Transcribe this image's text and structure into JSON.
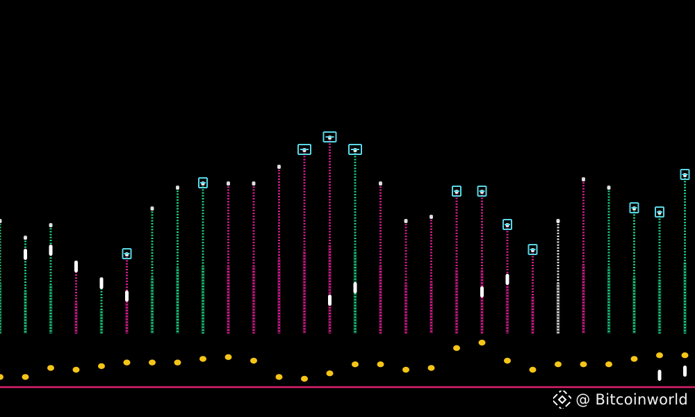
{
  "watermark": {
    "text": "@ Bitcoinworld",
    "logo": "binance-diamond-logo"
  },
  "colors": {
    "background": "#000000",
    "baseline": "#e0206e",
    "green": "#22e08a",
    "magenta": "#e8209a",
    "white": "#ffffff",
    "cyan": "#59d8e6",
    "dot": "#f5c518"
  },
  "columns": [
    {
      "top": 0.47,
      "bottom": 0.2,
      "color": "green",
      "marker": 0.05,
      "bracket": false,
      "dot": 0.01
    },
    {
      "top": 0.43,
      "bottom": 0.2,
      "color": "green",
      "marker": 0.39,
      "bracket": false,
      "dot": 0.01
    },
    {
      "top": 0.46,
      "bottom": 0.2,
      "color": "green",
      "marker": 0.4,
      "bracket": false,
      "dot": 0.06
    },
    {
      "top": 0.37,
      "bottom": 0.2,
      "color": "magenta",
      "marker": 0.36,
      "bracket": false,
      "dot": 0.05
    },
    {
      "top": 0.33,
      "bottom": 0.2,
      "color": "green",
      "marker": 0.32,
      "bracket": false,
      "dot": 0.07
    },
    {
      "top": 0.39,
      "bottom": 0.2,
      "color": "magenta",
      "marker": 0.29,
      "bracket": true,
      "dot": 0.09
    },
    {
      "top": 0.5,
      "bottom": 0.2,
      "color": "green",
      "marker": 0.05,
      "bracket": false,
      "dot": 0.09
    },
    {
      "top": 0.55,
      "bottom": 0.2,
      "color": "green",
      "marker": 0.05,
      "bracket": false,
      "dot": 0.09
    },
    {
      "top": 0.56,
      "bottom": 0.2,
      "color": "green",
      "marker": 0.05,
      "bracket": true,
      "dot": 0.11
    },
    {
      "top": 0.56,
      "bottom": 0.2,
      "color": "magenta",
      "marker": 0.05,
      "bracket": false,
      "dot": 0.12
    },
    {
      "top": 0.56,
      "bottom": 0.2,
      "color": "magenta",
      "marker": 0.05,
      "bracket": false,
      "dot": 0.1
    },
    {
      "top": 0.6,
      "bottom": 0.2,
      "color": "magenta",
      "marker": 0.05,
      "bracket": false,
      "dot": 0.01
    },
    {
      "top": 0.64,
      "bottom": 0.2,
      "color": "magenta",
      "marker": 0.05,
      "bracket": true,
      "dot": 0.0
    },
    {
      "top": 0.67,
      "bottom": 0.2,
      "color": "magenta",
      "marker": 0.28,
      "bracket": true,
      "dot": 0.03
    },
    {
      "top": 0.64,
      "bottom": 0.2,
      "color": "green",
      "marker": 0.31,
      "bracket": true,
      "dot": 0.08
    },
    {
      "top": 0.56,
      "bottom": 0.2,
      "color": "magenta",
      "marker": 0.05,
      "bracket": false,
      "dot": 0.08
    },
    {
      "top": 0.47,
      "bottom": 0.2,
      "color": "magenta",
      "marker": 0.05,
      "bracket": false,
      "dot": 0.05
    },
    {
      "top": 0.48,
      "bottom": 0.2,
      "color": "magenta",
      "marker": 0.05,
      "bracket": false,
      "dot": 0.06
    },
    {
      "top": 0.54,
      "bottom": 0.2,
      "color": "magenta",
      "marker": 0.05,
      "bracket": true,
      "dot": 0.17
    },
    {
      "top": 0.54,
      "bottom": 0.2,
      "color": "magenta",
      "marker": 0.3,
      "bracket": true,
      "dot": 0.2
    },
    {
      "top": 0.46,
      "bottom": 0.2,
      "color": "magenta",
      "marker": 0.33,
      "bracket": true,
      "dot": 0.1
    },
    {
      "top": 0.4,
      "bottom": 0.2,
      "color": "magenta",
      "marker": 0.05,
      "bracket": true,
      "dot": 0.05
    },
    {
      "top": 0.47,
      "bottom": 0.2,
      "color": "white",
      "marker": 0.05,
      "bracket": false,
      "dot": 0.08
    },
    {
      "top": 0.57,
      "bottom": 0.2,
      "color": "magenta",
      "marker": 0.05,
      "bracket": false,
      "dot": 0.08
    },
    {
      "top": 0.55,
      "bottom": 0.2,
      "color": "green",
      "marker": 0.05,
      "bracket": false,
      "dot": 0.08
    },
    {
      "top": 0.5,
      "bottom": 0.2,
      "color": "green",
      "marker": 0.05,
      "bracket": true,
      "dot": 0.11
    },
    {
      "top": 0.49,
      "bottom": 0.2,
      "color": "green",
      "marker": 0.1,
      "bracket": true,
      "dot": 0.13
    },
    {
      "top": 0.58,
      "bottom": 0.2,
      "color": "green",
      "marker": 0.11,
      "bracket": true,
      "dot": 0.13
    }
  ]
}
